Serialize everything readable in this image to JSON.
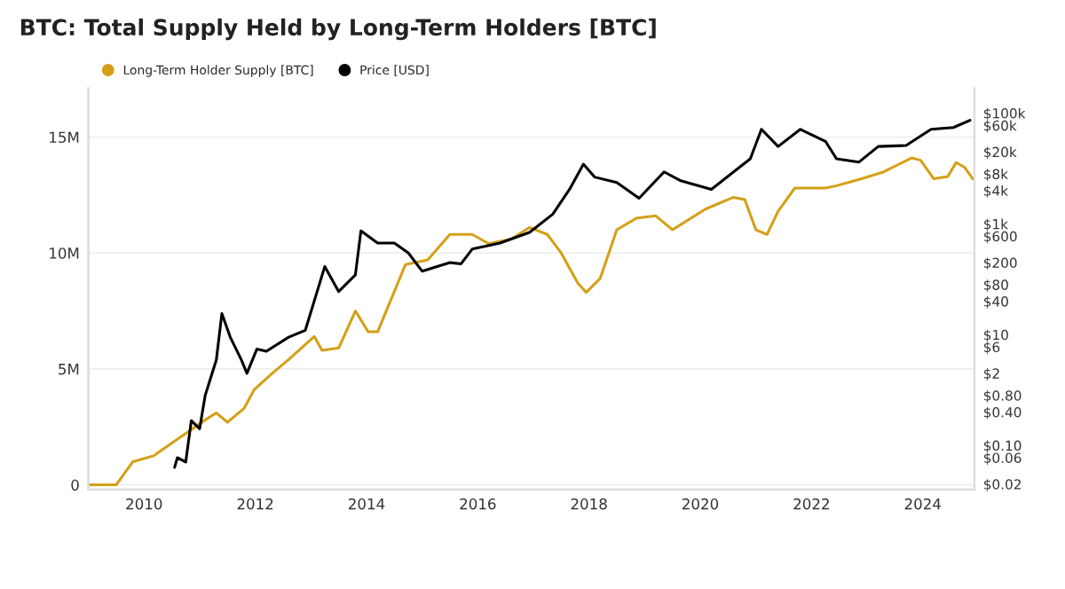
{
  "chart_data": {
    "type": "line",
    "title": "BTC: Total Supply Held by Long-Term Holders [BTC]",
    "xlim": [
      2009.0,
      2024.93
    ],
    "xticks": [
      2010,
      2012,
      2014,
      2016,
      2018,
      2020,
      2022,
      2024
    ],
    "ylim": [
      -200000,
      17100000
    ],
    "yticks": [
      0,
      {
        "value": 5000000,
        "label": "5M"
      },
      {
        "value": 10000000,
        "label": "10M"
      },
      {
        "value": 15000000,
        "label": "15M"
      }
    ],
    "y2lim": [
      0.016,
      280000
    ],
    "log": "y2",
    "y2ticks": [
      {
        "value": 0.02,
        "label": "$0.02"
      },
      {
        "value": 0.06,
        "label": "$0.06"
      },
      {
        "value": 0.1,
        "label": "$0.10"
      },
      {
        "value": 0.4,
        "label": "$0.40"
      },
      {
        "value": 0.8,
        "label": "$0.80"
      },
      {
        "value": 2,
        "label": "$2"
      },
      {
        "value": 6,
        "label": "$6"
      },
      {
        "value": 10,
        "label": "$10"
      },
      {
        "value": 40,
        "label": "$40"
      },
      {
        "value": 80,
        "label": "$80"
      },
      {
        "value": 200,
        "label": "$200"
      },
      {
        "value": 600,
        "label": "$600"
      },
      {
        "value": 1000,
        "label": "$1k"
      },
      {
        "value": 4000,
        "label": "$4k"
      },
      {
        "value": 8000,
        "label": "$8k"
      },
      {
        "value": 20000,
        "label": "$20k"
      },
      {
        "value": 60000,
        "label": "$60k"
      },
      {
        "value": 100000,
        "label": "$100k"
      }
    ],
    "grid": "y",
    "legend": "top left",
    "marker": "none",
    "line_style": "solid",
    "series": [
      {
        "name": "Long-Term Holder Supply [BTC]",
        "color": "#d4a017",
        "x": [
          2009.0,
          2009.5,
          2009.8,
          2010.17,
          2010.5,
          2010.8,
          2011.1,
          2011.3,
          2011.5,
          2011.8,
          2011.98,
          2012.3,
          2012.6,
          2013.06,
          2013.2,
          2013.5,
          2013.8,
          2014.03,
          2014.2,
          2014.7,
          2015.1,
          2015.5,
          2015.9,
          2016.2,
          2016.6,
          2016.93,
          2017.25,
          2017.5,
          2017.8,
          2017.95,
          2018.2,
          2018.5,
          2018.85,
          2019.2,
          2019.5,
          2020.1,
          2020.6,
          2020.8,
          2021.0,
          2021.2,
          2021.4,
          2021.7,
          2022.25,
          2022.45,
          2022.9,
          2023.3,
          2023.8,
          2023.96,
          2024.2,
          2024.45,
          2024.6,
          2024.75,
          2024.9
        ],
        "values": [
          0,
          0,
          1000000,
          1250000,
          1800000,
          2300000,
          2800000,
          3100000,
          2700000,
          3300000,
          4100000,
          4800000,
          5400000,
          6400000,
          5800000,
          5900000,
          7500000,
          6600000,
          6600000,
          9500000,
          9700000,
          10800000,
          10800000,
          10400000,
          10600000,
          11100000,
          10800000,
          10000000,
          8700000,
          8300000,
          8900000,
          11000000,
          11500000,
          11600000,
          11000000,
          11900000,
          12400000,
          12300000,
          11000000,
          10800000,
          11800000,
          12800000,
          12800000,
          12900000,
          13200000,
          13500000,
          14100000,
          14000000,
          13200000,
          13300000,
          13900000,
          13700000,
          13200000
        ]
      },
      {
        "name": "Price [USD]",
        "color": "#000000",
        "axis": "y2",
        "x": [
          2010.55,
          2010.6,
          2010.75,
          2010.85,
          2011.0,
          2011.1,
          2011.3,
          2011.4,
          2011.55,
          2011.75,
          2011.85,
          2012.03,
          2012.2,
          2012.6,
          2012.9,
          2013.25,
          2013.5,
          2013.8,
          2013.9,
          2014.2,
          2014.5,
          2014.75,
          2015.0,
          2015.5,
          2015.7,
          2015.9,
          2016.4,
          2016.93,
          2017.35,
          2017.65,
          2017.9,
          2018.1,
          2018.5,
          2018.9,
          2019.35,
          2019.65,
          2020.2,
          2020.6,
          2020.9,
          2021.1,
          2021.4,
          2021.8,
          2022.25,
          2022.45,
          2022.85,
          2023.2,
          2023.7,
          2024.15,
          2024.55,
          2024.85
        ],
        "values": [
          0.04,
          0.06,
          0.05,
          0.28,
          0.2,
          0.8,
          3.5,
          24,
          9,
          3.5,
          2,
          5.5,
          5,
          9,
          12,
          170,
          60,
          120,
          750,
          450,
          450,
          300,
          140,
          200,
          190,
          350,
          450,
          700,
          1500,
          4200,
          12000,
          7000,
          5600,
          2900,
          8700,
          6000,
          4200,
          8700,
          15000,
          51000,
          25000,
          51000,
          31000,
          15000,
          13000,
          25000,
          26000,
          51000,
          55000,
          74000
        ]
      }
    ]
  }
}
